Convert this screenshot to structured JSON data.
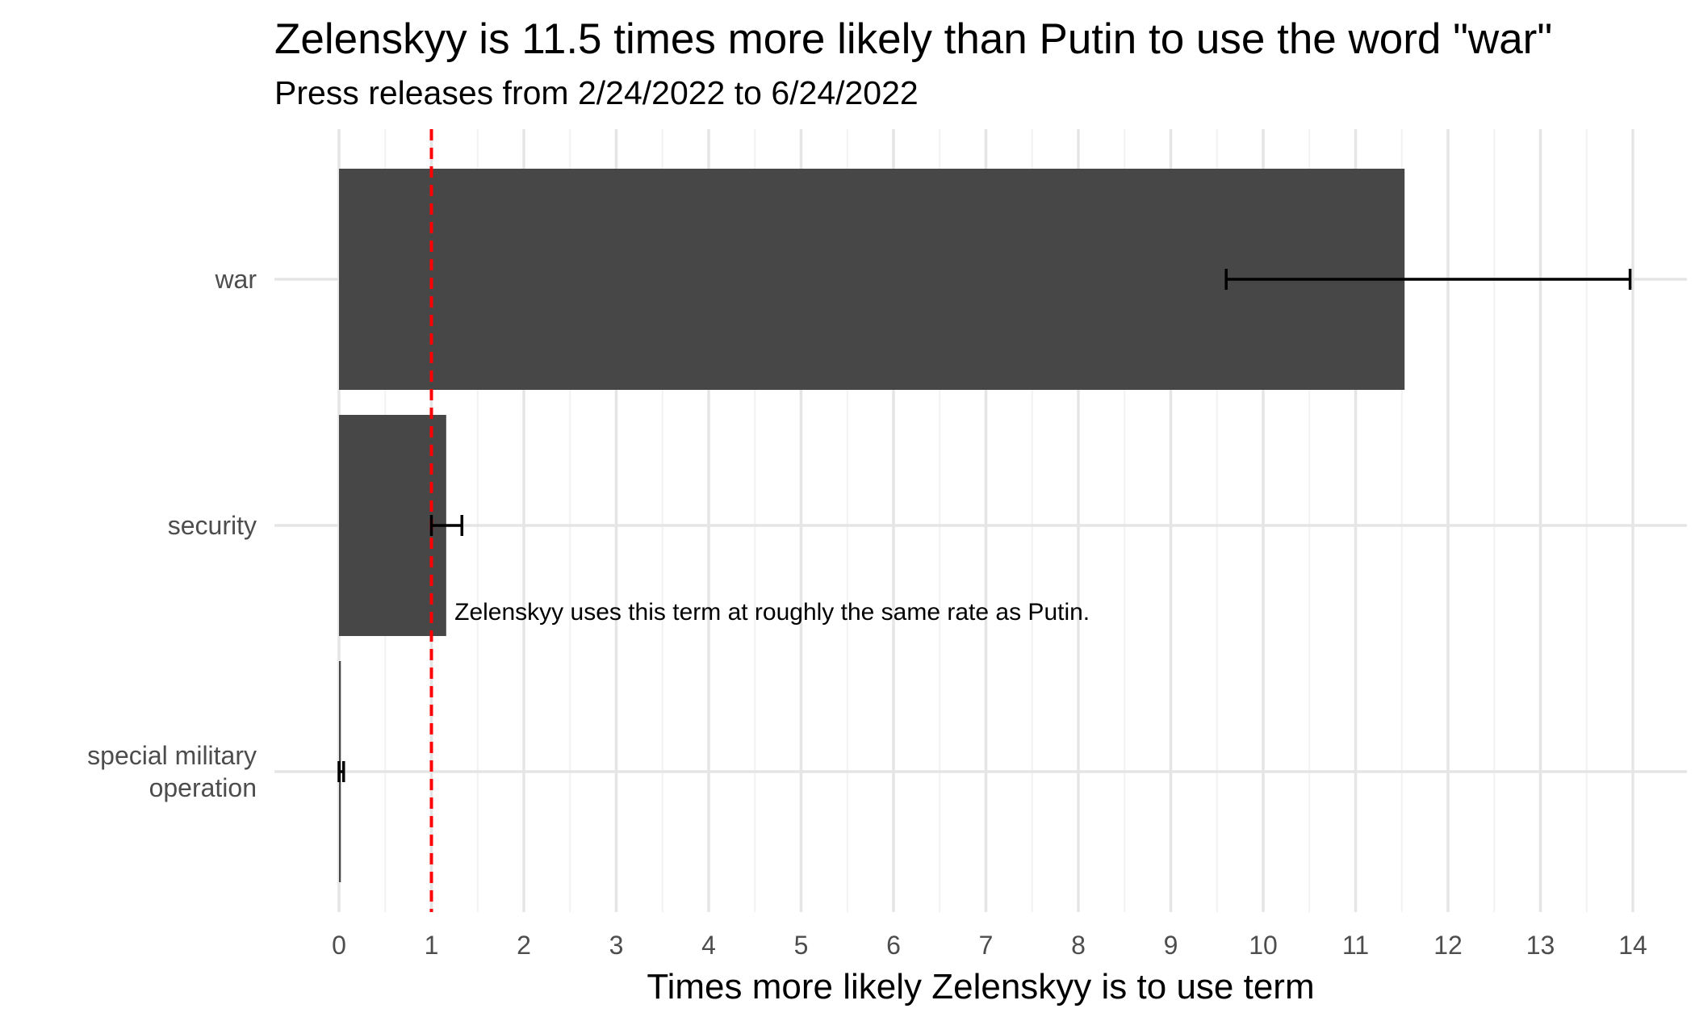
{
  "chart_data": {
    "type": "bar",
    "orientation": "horizontal",
    "title": "Zelenskyy is 11.5 times more likely than Putin to use the word \"war\"",
    "subtitle": "Press releases from 2/24/2022 to 6/24/2022",
    "xlabel": "Times more likely Zelenskyy is to use term",
    "ylabel": "",
    "xlim": [
      0,
      14
    ],
    "xticks": [
      "0",
      "1",
      "2",
      "3",
      "4",
      "5",
      "6",
      "7",
      "8",
      "9",
      "10",
      "11",
      "12",
      "13",
      "14"
    ],
    "categories": [
      {
        "label_lines": [
          "war"
        ],
        "value": 11.53,
        "ci": [
          9.6,
          13.97
        ]
      },
      {
        "label_lines": [
          "security"
        ],
        "value": 1.16,
        "ci": [
          1.0,
          1.33
        ]
      },
      {
        "label_lines": [
          "special military",
          "operation"
        ],
        "value": 0.02,
        "ci": [
          0.0,
          0.05
        ]
      }
    ],
    "reference_line": {
      "x": 1,
      "color": "#ff0000",
      "style": "dashed"
    },
    "annotation": {
      "text": "Zelenskyy uses this term at roughly the same rate as Putin.",
      "x": 1.25,
      "category_index": 1
    },
    "bar_color": "#474747",
    "grid": true,
    "legend": "none"
  }
}
